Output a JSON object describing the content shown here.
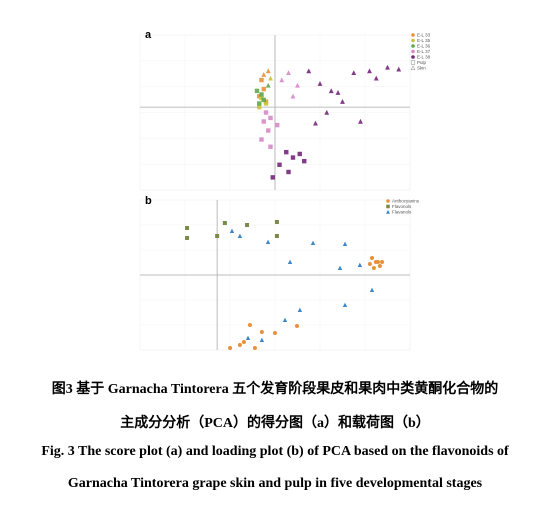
{
  "chart_data": [
    {
      "type": "scatter",
      "label": "a",
      "xlim": [
        -6,
        6
      ],
      "ylim": [
        -4.6,
        4
      ],
      "zero_lines": true,
      "markers": [
        {
          "name": "Pulp",
          "shape": "square"
        },
        {
          "name": "Skin",
          "shape": "triangle"
        }
      ],
      "series": [
        {
          "name": "E-L 33",
          "color": "#e8913a",
          "groups": [
            {
              "x": [
                -0.6,
                -0.5,
                -0.7,
                -0.4
              ],
              "y": [
                1.5,
                1.0,
                0.6,
                0.3
              ]
            },
            {
              "x": [
                -0.3,
                -0.5
              ],
              "y": [
                2.0,
                1.8
              ]
            }
          ]
        },
        {
          "name": "E-L 35",
          "color": "#c9c23a",
          "groups": [
            {
              "x": [
                -0.6,
                -0.4,
                -0.7
              ],
              "y": [
                0.5,
                0.2,
                0.0
              ]
            },
            {
              "x": [
                -0.2
              ],
              "y": [
                1.6
              ]
            }
          ]
        },
        {
          "name": "E-L 36",
          "color": "#5ea84c",
          "groups": [
            {
              "x": [
                -0.8,
                -0.6,
                -0.5,
                -0.7
              ],
              "y": [
                0.9,
                0.7,
                0.4,
                0.2
              ]
            },
            {
              "x": [
                -0.3
              ],
              "y": [
                1.2
              ]
            }
          ]
        },
        {
          "name": "E-L 37",
          "color": "#d58ac6",
          "groups": [
            {
              "x": [
                -0.4,
                -0.5,
                -0.3,
                -0.6,
                -0.2,
                0.1,
                -0.2
              ],
              "y": [
                -0.3,
                -0.8,
                -1.3,
                -1.8,
                -2.2,
                -1.0,
                -0.6
              ]
            },
            {
              "x": [
                0.3,
                0.6,
                1.0,
                0.8
              ],
              "y": [
                1.5,
                1.9,
                1.2,
                0.6
              ]
            }
          ]
        },
        {
          "name": "E-L 38",
          "color": "#74267a",
          "groups": [
            {
              "x": [
                0.5,
                0.8,
                1.1,
                0.2,
                0.6,
                -0.1,
                1.3
              ],
              "y": [
                -2.5,
                -2.8,
                -2.6,
                -3.2,
                -3.6,
                -3.9,
                -3.0
              ]
            },
            {
              "x": [
                1.5,
                2.0,
                2.8,
                3.5,
                4.2,
                5.0,
                5.5,
                4.5,
                3.0,
                2.3,
                3.8,
                1.8,
                2.5
              ],
              "y": [
                2.0,
                1.3,
                0.8,
                1.9,
                2.0,
                2.2,
                2.1,
                1.6,
                0.3,
                -0.3,
                -0.8,
                -0.9,
                0.9
              ]
            }
          ]
        }
      ]
    },
    {
      "type": "scatter",
      "label": "b",
      "xlim": [
        -0.4,
        1.0
      ],
      "ylim": [
        -0.6,
        0.6
      ],
      "zero_lines": true,
      "series": [
        {
          "name": "Anthocyanins",
          "color": "#e8913a",
          "shape": "circle",
          "x": [
            0.803,
            0.823,
            0.844,
            0.834,
            0.813,
            0.855,
            0.792,
            0.17,
            0.232,
            0.3,
            0.414,
            0.118,
            0.067,
            0.196,
            0.139
          ],
          "y": [
            0.136,
            0.104,
            0.072,
            0.104,
            0.056,
            0.104,
            0.088,
            -0.4,
            -0.456,
            -0.464,
            -0.408,
            -0.56,
            -0.584,
            -0.584,
            -0.536
          ]
        },
        {
          "name": "Flavonols",
          "color": "#7a8a4a",
          "shape": "square",
          "x": [
            -0.156,
            -0.156,
            0.0,
            0.04,
            0.155,
            0.31,
            0.31
          ],
          "y": [
            0.296,
            0.376,
            0.312,
            0.416,
            0.4,
            0.424,
            0.312
          ]
        },
        {
          "name": "Flavanols",
          "color": "#3f86c8",
          "shape": "triangle",
          "x": [
            0.077,
            0.118,
            0.264,
            0.497,
            0.378,
            0.663,
            0.637,
            0.74,
            0.803,
            0.663,
            0.429,
            0.352,
            0.232,
            0.16
          ],
          "y": [
            0.352,
            0.312,
            0.264,
            0.256,
            0.104,
            0.248,
            0.056,
            0.08,
            -0.12,
            -0.24,
            -0.28,
            -0.36,
            -0.52,
            -0.504
          ]
        }
      ]
    }
  ],
  "caption": {
    "zh_line1": "图3  基于 Garnacha Tintorera 五个发育阶段果皮和果肉中类黄酮化合物的",
    "zh_line2": "主成分分析（PCA）的得分图（a）和载荷图（b）",
    "en_line1": "Fig. 3 The score plot (a) and loading plot (b) of PCA based on the flavonoids of",
    "en_line2": "Garnacha Tintorera grape skin and pulp in five developmental stages"
  }
}
